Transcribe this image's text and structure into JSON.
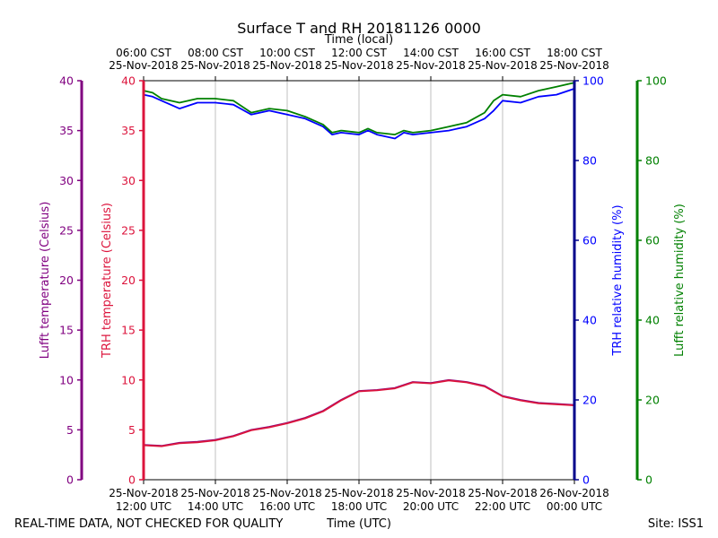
{
  "colors": {
    "lufft_temp": "#800080",
    "trh_temp": "#dc143c",
    "trh_rh": "#0000ff",
    "lufft_rh": "#008000",
    "trh_rh_axis": "#00008b",
    "grid": "#b0b0b0"
  },
  "footer": {
    "left": "REAL-TIME DATA, NOT CHECKED FOR QUALITY",
    "center": "Time (UTC)",
    "right": "Site: ISS1"
  },
  "chart_data": {
    "type": "line",
    "title": "Surface T and RH 20181126 0000",
    "top_xlabel": "Time (local)",
    "xlabel": "Time (UTC)",
    "xlim_hours": [
      12,
      24
    ],
    "x_ticks": [
      {
        "hour": 12,
        "utc_date": "25-Nov-2018",
        "utc_time": "12:00 UTC",
        "local_time": "06:00 CST",
        "local_date": "25-Nov-2018"
      },
      {
        "hour": 14,
        "utc_date": "25-Nov-2018",
        "utc_time": "14:00 UTC",
        "local_time": "08:00 CST",
        "local_date": "25-Nov-2018"
      },
      {
        "hour": 16,
        "utc_date": "25-Nov-2018",
        "utc_time": "16:00 UTC",
        "local_time": "10:00 CST",
        "local_date": "25-Nov-2018"
      },
      {
        "hour": 18,
        "utc_date": "25-Nov-2018",
        "utc_time": "18:00 UTC",
        "local_time": "12:00 CST",
        "local_date": "25-Nov-2018"
      },
      {
        "hour": 20,
        "utc_date": "25-Nov-2018",
        "utc_time": "20:00 UTC",
        "local_time": "14:00 CST",
        "local_date": "25-Nov-2018"
      },
      {
        "hour": 22,
        "utc_date": "25-Nov-2018",
        "utc_time": "22:00 UTC",
        "local_time": "16:00 CST",
        "local_date": "25-Nov-2018"
      },
      {
        "hour": 24,
        "utc_date": "26-Nov-2018",
        "utc_time": "00:00 UTC",
        "local_time": "18:00 CST",
        "local_date": "25-Nov-2018"
      }
    ],
    "axes": {
      "lufft_temp": {
        "label": "Lufft temperature (Celsius)",
        "ylim": [
          0,
          40
        ],
        "ticks": [
          "0",
          "5",
          "10",
          "15",
          "20",
          "25",
          "30",
          "35",
          "40"
        ]
      },
      "trh_temp": {
        "label": "TRH temperature (Celsius)",
        "ylim": [
          0,
          40
        ],
        "ticks": [
          "0",
          "5",
          "10",
          "15",
          "20",
          "25",
          "30",
          "35",
          "40"
        ]
      },
      "trh_rh": {
        "label": "TRH relative humidity (%)",
        "ylim": [
          0,
          100
        ],
        "ticks": [
          "0",
          "20",
          "40",
          "60",
          "80",
          "100"
        ]
      },
      "lufft_rh": {
        "label": "Lufft relative humidity (%)",
        "ylim": [
          0,
          100
        ],
        "ticks": [
          "0",
          "20",
          "40",
          "60",
          "80",
          "100"
        ]
      }
    },
    "series": [
      {
        "name": "Lufft temperature",
        "axis": "lufft_temp",
        "color_key": "lufft_temp",
        "x": [
          12.0,
          12.5,
          13.0,
          13.5,
          14.0,
          14.5,
          15.0,
          15.5,
          16.0,
          16.5,
          17.0,
          17.5,
          18.0,
          18.5,
          19.0,
          19.5,
          20.0,
          20.5,
          21.0,
          21.5,
          22.0,
          22.5,
          23.0,
          23.5,
          24.0
        ],
        "y": [
          3.5,
          3.4,
          3.7,
          3.8,
          4.0,
          4.4,
          5.0,
          5.3,
          5.7,
          6.2,
          6.9,
          8.0,
          8.9,
          9.0,
          9.2,
          9.8,
          9.7,
          10.0,
          9.8,
          9.4,
          8.4,
          8.0,
          7.7,
          7.6,
          7.5
        ]
      },
      {
        "name": "TRH temperature",
        "axis": "trh_temp",
        "color_key": "trh_temp",
        "x": [
          12.0,
          12.5,
          13.0,
          13.5,
          14.0,
          14.5,
          15.0,
          15.5,
          16.0,
          16.5,
          17.0,
          17.5,
          18.0,
          18.5,
          19.0,
          19.5,
          20.0,
          20.5,
          21.0,
          21.5,
          22.0,
          22.5,
          23.0,
          23.5,
          24.0
        ],
        "y": [
          3.45,
          3.35,
          3.65,
          3.75,
          3.95,
          4.35,
          4.95,
          5.25,
          5.65,
          6.15,
          6.85,
          7.95,
          8.85,
          8.95,
          9.15,
          9.75,
          9.65,
          9.95,
          9.75,
          9.35,
          8.35,
          7.95,
          7.65,
          7.55,
          7.45
        ]
      },
      {
        "name": "TRH relative humidity",
        "axis": "trh_rh",
        "color_key": "trh_rh",
        "x": [
          12.0,
          12.25,
          12.5,
          13.0,
          13.5,
          14.0,
          14.5,
          15.0,
          15.5,
          16.0,
          16.5,
          17.0,
          17.25,
          17.5,
          18.0,
          18.25,
          18.5,
          19.0,
          19.25,
          19.5,
          20.0,
          20.5,
          21.0,
          21.5,
          21.75,
          22.0,
          22.5,
          23.0,
          23.5,
          24.0
        ],
        "y": [
          96.5,
          96.0,
          95.0,
          93.0,
          94.5,
          94.5,
          94.0,
          91.5,
          92.5,
          91.5,
          90.5,
          88.5,
          86.5,
          87.0,
          86.5,
          87.5,
          86.5,
          85.5,
          87.0,
          86.5,
          87.0,
          87.5,
          88.5,
          90.5,
          92.5,
          95.0,
          94.5,
          96.0,
          96.5,
          98.0
        ]
      },
      {
        "name": "Lufft relative humidity",
        "axis": "lufft_rh",
        "color_key": "lufft_rh",
        "x": [
          12.0,
          12.25,
          12.5,
          13.0,
          13.5,
          14.0,
          14.5,
          15.0,
          15.5,
          16.0,
          16.5,
          17.0,
          17.25,
          17.5,
          18.0,
          18.25,
          18.5,
          19.0,
          19.25,
          19.5,
          20.0,
          20.5,
          21.0,
          21.5,
          21.75,
          22.0,
          22.5,
          23.0,
          23.5,
          24.0
        ],
        "y": [
          97.5,
          97.0,
          95.5,
          94.5,
          95.5,
          95.5,
          95.0,
          92.0,
          93.0,
          92.5,
          91.0,
          89.0,
          87.0,
          87.5,
          87.0,
          88.0,
          87.0,
          86.5,
          87.5,
          87.0,
          87.5,
          88.5,
          89.5,
          92.0,
          95.0,
          96.5,
          96.0,
          97.5,
          98.5,
          99.5
        ]
      }
    ]
  }
}
